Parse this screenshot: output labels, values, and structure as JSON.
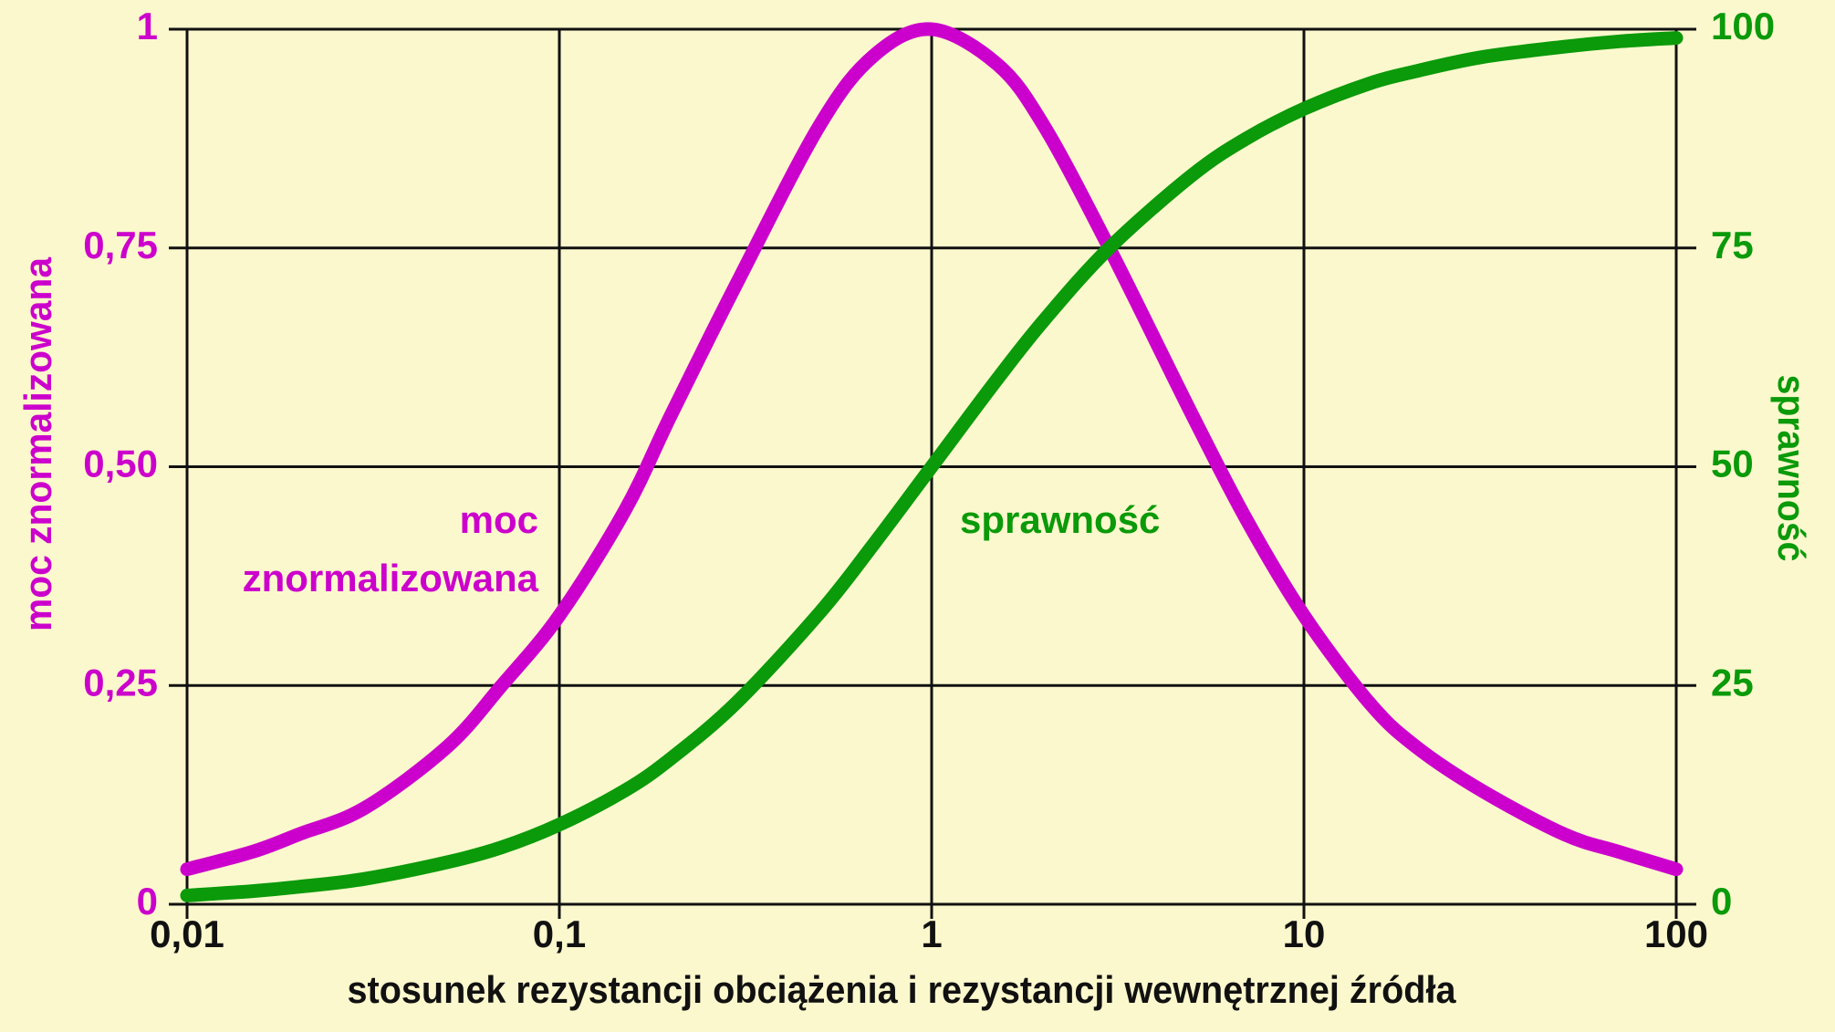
{
  "chart_data": {
    "type": "line",
    "xlabel": "stosunek rezystancji obciążenia i rezystancji wewnętrznej źródła",
    "ylabel": "moc znormalizowana",
    "y2label": "sprawność",
    "xscale": "log",
    "grid": true,
    "x": [
      0.01,
      0.015,
      0.02,
      0.03,
      0.05,
      0.07,
      0.1,
      0.15,
      0.2,
      0.3,
      0.5,
      0.7,
      1,
      1.5,
      2,
      3,
      5,
      7,
      10,
      15,
      20,
      30,
      50,
      70,
      100
    ],
    "series": [
      {
        "label_lines": [
          "moc",
          "znormalizowana"
        ],
        "color": "#cc00cc",
        "axis": "y",
        "values": [
          0.04,
          0.06,
          0.08,
          0.11,
          0.18,
          0.25,
          0.33,
          0.45,
          0.56,
          0.71,
          0.89,
          0.97,
          1,
          0.96,
          0.89,
          0.75,
          0.56,
          0.44,
          0.33,
          0.23,
          0.18,
          0.13,
          0.08,
          0.06,
          0.04
        ]
      },
      {
        "label_lines": [
          "sprawność"
        ],
        "color": "#0a9a0a",
        "axis": "y2",
        "values": [
          1.0,
          1.5,
          2.0,
          2.9,
          4.8,
          6.5,
          9.1,
          13.0,
          16.7,
          23.1,
          33.3,
          41.2,
          50,
          60,
          66.7,
          75,
          83.3,
          87.5,
          90.9,
          93.8,
          95.2,
          96.8,
          98.0,
          98.6,
          99.0
        ]
      }
    ],
    "xlim": [
      0.01,
      100
    ],
    "xticks": [
      {
        "value": 0.01,
        "label": "0,01"
      },
      {
        "value": 0.1,
        "label": "0,1"
      },
      1,
      10,
      100
    ],
    "ylim": [
      0,
      1
    ],
    "yticks": [
      0,
      {
        "value": 0.25,
        "label": "0,25"
      },
      {
        "value": 0.5,
        "label": "0,50"
      },
      {
        "value": 0.75,
        "label": "0,75"
      },
      1
    ],
    "y2lim": [
      0,
      100
    ],
    "y2ticks": [
      0,
      25,
      50,
      75,
      100
    ]
  }
}
